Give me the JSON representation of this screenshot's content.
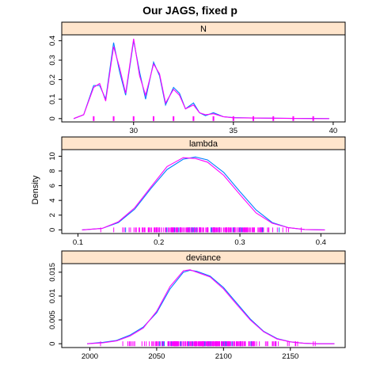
{
  "title": "Our JAGS, fixed p",
  "ylabel": "Density",
  "colors": {
    "strip": "#ffe5cc",
    "chain1": "#0080ff",
    "chain2": "#ff00ff",
    "chain3": "#00c8c8",
    "frame": "#000000"
  },
  "chart_data": [
    {
      "type": "line",
      "panel": "N",
      "xlim": [
        26.4,
        40.6
      ],
      "ylim": [
        -0.017,
        0.43
      ],
      "xticks": [
        30,
        35,
        40
      ],
      "yticks": [
        0.0,
        0.1,
        0.2,
        0.3,
        0.4
      ],
      "series": [
        {
          "x": [
            27.0,
            27.5,
            28.0,
            28.3,
            28.6,
            29.0,
            29.3,
            29.6,
            30.0,
            30.3,
            30.6,
            31.0,
            31.3,
            31.6,
            32.0,
            32.3,
            32.6,
            33.0,
            33.3,
            33.6,
            34.0,
            34.5,
            35.0,
            36.0,
            37.0,
            38.0,
            39.0,
            39.8
          ],
          "y": [
            0.0,
            0.02,
            0.17,
            0.17,
            0.1,
            0.39,
            0.24,
            0.12,
            0.4,
            0.24,
            0.1,
            0.29,
            0.22,
            0.07,
            0.16,
            0.13,
            0.05,
            0.08,
            0.03,
            0.015,
            0.03,
            0.01,
            0.005,
            0.003,
            0.002,
            0.001,
            0.001,
            0.0
          ]
        },
        {
          "x": [
            27.0,
            27.5,
            28.0,
            28.3,
            28.6,
            29.0,
            29.3,
            29.6,
            30.0,
            30.3,
            30.6,
            31.0,
            31.3,
            31.6,
            32.0,
            32.3,
            32.6,
            33.0,
            33.3,
            33.6,
            34.0,
            34.5,
            35.0,
            36.0,
            37.0,
            38.0,
            39.0,
            39.8
          ],
          "y": [
            0.0,
            0.02,
            0.16,
            0.18,
            0.09,
            0.37,
            0.26,
            0.13,
            0.41,
            0.22,
            0.12,
            0.28,
            0.23,
            0.08,
            0.15,
            0.12,
            0.05,
            0.07,
            0.03,
            0.02,
            0.025,
            0.01,
            0.004,
            0.003,
            0.002,
            0.001,
            0.0,
            0.0
          ]
        }
      ],
      "rug": [
        28,
        29,
        30,
        31,
        32,
        33,
        34,
        35,
        36,
        37,
        38,
        39
      ]
    },
    {
      "type": "line",
      "panel": "lambda",
      "xlim": [
        0.08,
        0.43
      ],
      "ylim": [
        -0.5,
        10.9
      ],
      "xticks": [
        0.1,
        0.2,
        0.3,
        0.4
      ],
      "yticks": [
        0,
        2,
        4,
        6,
        8,
        10
      ],
      "series": [
        {
          "x": [
            0.105,
            0.13,
            0.15,
            0.17,
            0.19,
            0.21,
            0.23,
            0.245,
            0.26,
            0.28,
            0.3,
            0.32,
            0.34,
            0.36,
            0.38,
            0.405
          ],
          "y": [
            0.0,
            0.2,
            1.0,
            2.8,
            5.6,
            8.2,
            9.6,
            9.9,
            9.5,
            7.8,
            5.2,
            2.7,
            1.0,
            0.3,
            0.05,
            0.0
          ]
        },
        {
          "x": [
            0.105,
            0.13,
            0.15,
            0.17,
            0.19,
            0.21,
            0.23,
            0.245,
            0.26,
            0.28,
            0.3,
            0.32,
            0.34,
            0.36,
            0.38,
            0.405
          ],
          "y": [
            0.0,
            0.2,
            1.1,
            3.0,
            5.8,
            8.6,
            9.8,
            9.7,
            9.2,
            7.4,
            4.8,
            2.3,
            0.9,
            0.3,
            0.05,
            0.0
          ]
        }
      ],
      "rug_range": [
        0.11,
        0.4
      ]
    },
    {
      "type": "line",
      "panel": "deviance",
      "xlim": [
        1979,
        2191
      ],
      "ylim": [
        -0.0008,
        0.0168
      ],
      "xticks": [
        2000,
        2050,
        2100,
        2150
      ],
      "yticks": [
        0.0,
        0.005,
        0.01,
        0.015
      ],
      "series": [
        {
          "x": [
            1998,
            2010,
            2020,
            2030,
            2040,
            2050,
            2060,
            2070,
            2075,
            2080,
            2090,
            2100,
            2110,
            2120,
            2130,
            2140,
            2150,
            2160,
            2170,
            2183
          ],
          "y": [
            0.0,
            0.0003,
            0.0007,
            0.0018,
            0.0035,
            0.0065,
            0.0115,
            0.015,
            0.0154,
            0.0152,
            0.0142,
            0.0118,
            0.0085,
            0.0052,
            0.0026,
            0.0011,
            0.0004,
            0.0001,
            0.0,
            0.0
          ]
        },
        {
          "x": [
            1998,
            2010,
            2020,
            2030,
            2040,
            2050,
            2060,
            2070,
            2075,
            2080,
            2090,
            2100,
            2110,
            2120,
            2130,
            2140,
            2150,
            2160,
            2170,
            2183
          ],
          "y": [
            0.0,
            0.0002,
            0.0006,
            0.0016,
            0.0033,
            0.0068,
            0.012,
            0.0153,
            0.0155,
            0.015,
            0.014,
            0.0115,
            0.0082,
            0.005,
            0.0025,
            0.001,
            0.0004,
            0.0001,
            0.0,
            0.0
          ]
        }
      ],
      "rug_range": [
        2005,
        2175
      ]
    }
  ]
}
